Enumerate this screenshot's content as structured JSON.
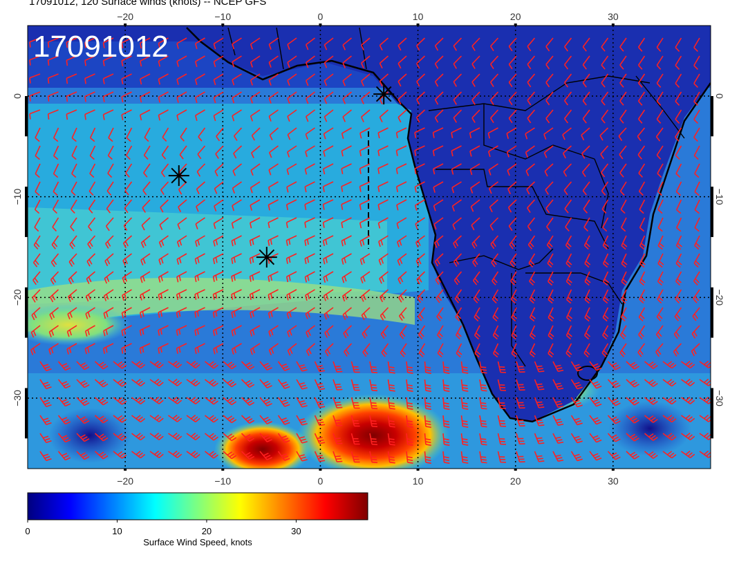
{
  "header": {
    "title": "17091012, 120 Surface winds (knots) -- NCEP GFS",
    "stamp": "17091012"
  },
  "map": {
    "lon_range": [
      -30,
      40
    ],
    "lat_range": [
      -37,
      7
    ],
    "lon_ticks": [
      {
        "value": -20,
        "label": "−20"
      },
      {
        "value": -10,
        "label": "−10"
      },
      {
        "value": 0,
        "label": "0"
      },
      {
        "value": 10,
        "label": "10"
      },
      {
        "value": 20,
        "label": "20"
      },
      {
        "value": 30,
        "label": "30"
      }
    ],
    "lat_ticks": [
      {
        "value": 0,
        "label": "0"
      },
      {
        "value": -10,
        "label": "−10"
      },
      {
        "value": -20,
        "label": "−20"
      },
      {
        "value": -30,
        "label": "−30"
      }
    ],
    "markers": [
      {
        "name": "marker-1",
        "lon": 6.5,
        "lat": 0.2
      },
      {
        "name": "marker-2",
        "lon": -14.5,
        "lat": -7.9
      },
      {
        "name": "marker-3",
        "lon": -5.5,
        "lat": -16.0
      }
    ],
    "barb_color": "#ff2020"
  },
  "colorbar": {
    "label": "Surface Wind Speed, knots",
    "min": 0,
    "max": 38,
    "ticks": [
      {
        "value": 0,
        "label": "0"
      },
      {
        "value": 10,
        "label": "10"
      },
      {
        "value": 20,
        "label": "20"
      },
      {
        "value": 30,
        "label": "30"
      }
    ],
    "colors": [
      "#00007f",
      "#0000ff",
      "#007fff",
      "#00ffff",
      "#7fff7f",
      "#ffff00",
      "#ff7f00",
      "#ff0000",
      "#7f0000"
    ]
  }
}
